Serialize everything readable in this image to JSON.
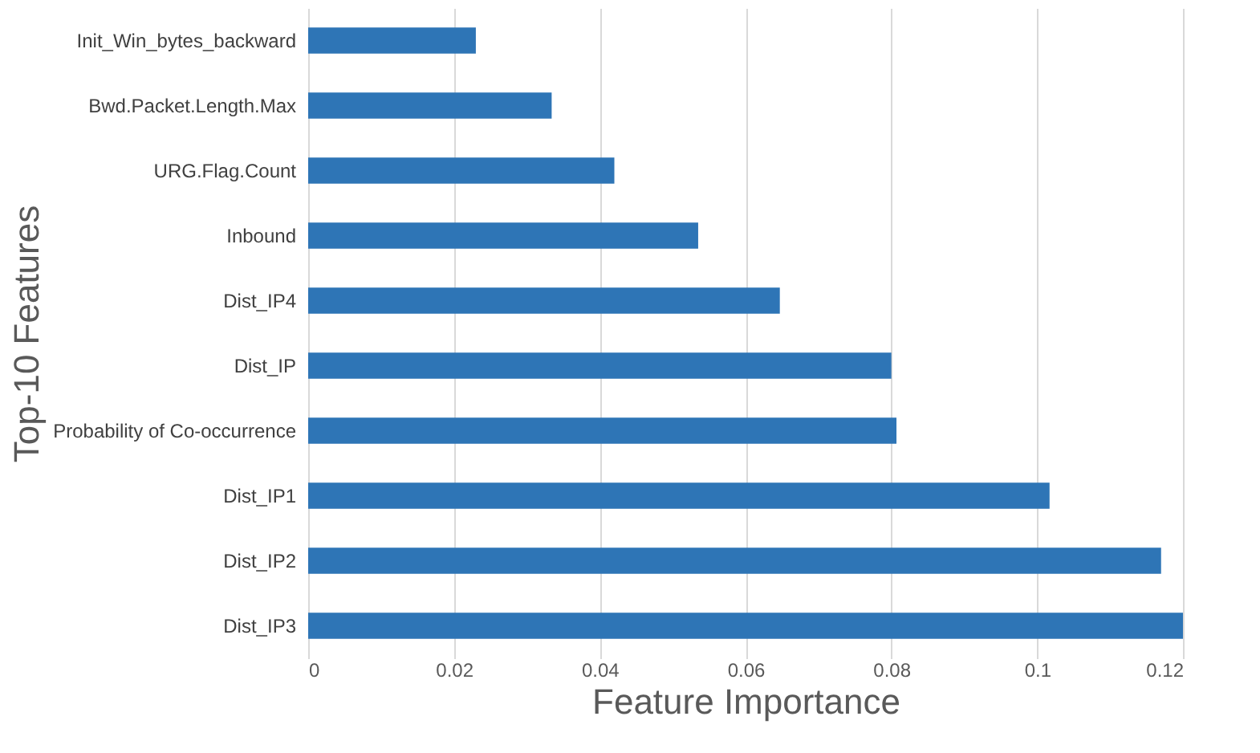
{
  "chart_data": {
    "type": "bar",
    "orientation": "horizontal",
    "xlabel": "Feature Importance",
    "ylabel": "Top-10 Features",
    "categories": [
      "Init_Win_bytes_backward",
      "Bwd.Packet.Length.Max",
      "URG.Flag.Count",
      "Inbound",
      "Dist_IP4",
      "Dist_IP",
      "Probability of Co-occurrence",
      "Dist_IP1",
      "Dist_IP2",
      "Dist_IP3"
    ],
    "values": [
      0.023,
      0.0334,
      0.042,
      0.0535,
      0.0647,
      0.08,
      0.0807,
      0.1017,
      0.117,
      0.12
    ],
    "color": "#2e75b6",
    "xlim": [
      0,
      0.12
    ],
    "xticks": [
      0,
      0.02,
      0.04,
      0.06,
      0.08,
      0.1,
      0.12
    ],
    "grid": "x"
  }
}
